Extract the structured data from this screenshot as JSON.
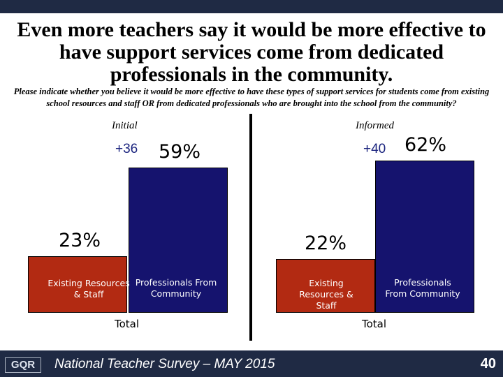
{
  "title": "Even more teachers say it would be more effective to have support services come from dedicated professionals in the community.",
  "subtitle": "Please indicate whether you believe it would be more effective to have these types of support services for students come from existing school resources and staff OR from dedicated professionals who are brought into the school from the community?",
  "footer": {
    "logo_text": "GQR",
    "survey": "National Teacher Survey – MAY 2015",
    "page_number": "40"
  },
  "colors": {
    "existing": "#b22a12",
    "professionals": "#15136e",
    "net": "#1a237e",
    "bars_border": "#000000"
  },
  "chart_data": {
    "type": "bar",
    "ylim": [
      0,
      100
    ],
    "panels": [
      {
        "name": "Initial",
        "net": "+36",
        "xlabel": "Total",
        "categories": [
          "Existing Resources & Staff",
          "Professionals From Community"
        ],
        "values": [
          23,
          59
        ],
        "value_labels": [
          "23%",
          "59%"
        ]
      },
      {
        "name": "Informed",
        "net": "+40",
        "xlabel": "Total",
        "categories": [
          "Existing Resources & Staff",
          "Professionals From Community"
        ],
        "values": [
          22,
          62
        ],
        "value_labels": [
          "22%",
          "62%"
        ]
      }
    ]
  }
}
